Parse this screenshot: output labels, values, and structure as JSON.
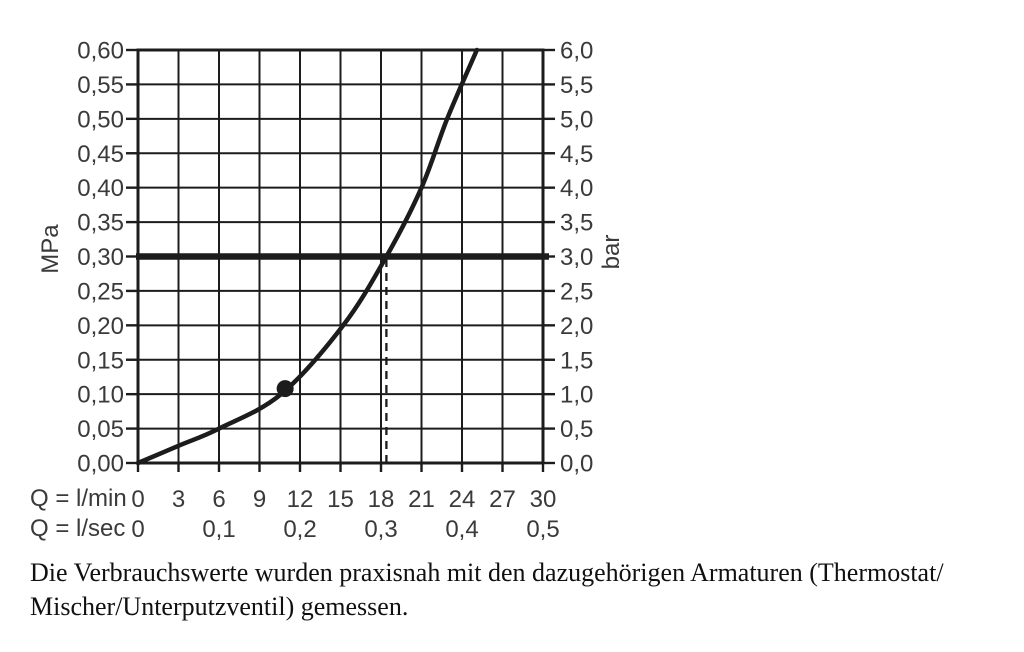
{
  "chart_data": {
    "type": "line",
    "title": "",
    "x_axis": {
      "label": "Q = l/min",
      "tick_values": [
        0,
        3,
        6,
        9,
        12,
        15,
        18,
        21,
        24,
        27,
        30
      ],
      "tick_labels": [
        "0",
        "3",
        "6",
        "9",
        "12",
        "15",
        "18",
        "21",
        "24",
        "27",
        "30"
      ],
      "range": [
        0,
        30
      ]
    },
    "x_axis_secondary": {
      "label": "Q = l/sec",
      "tick_values": [
        0,
        6,
        12,
        18,
        24,
        30
      ],
      "tick_labels": [
        "0",
        "0,1",
        "0,2",
        "0,3",
        "0,4",
        "0,5"
      ],
      "range": [
        0,
        0.5
      ]
    },
    "y_axis_left": {
      "unit": "MPa",
      "tick_values": [
        0.6,
        0.55,
        0.5,
        0.45,
        0.4,
        0.35,
        0.3,
        0.25,
        0.2,
        0.15,
        0.1,
        0.05,
        0.0
      ],
      "tick_labels": [
        "0,60",
        "0,55",
        "0,50",
        "0,45",
        "0,40",
        "0,35",
        "0,30",
        "0,25",
        "0,20",
        "0,15",
        "0,10",
        "0,05",
        "0,00"
      ],
      "range": [
        0,
        0.6
      ]
    },
    "y_axis_right": {
      "unit": "bar",
      "tick_values": [
        6.0,
        5.5,
        5.0,
        4.5,
        4.0,
        3.5,
        3.0,
        2.5,
        2.0,
        1.5,
        1.0,
        0.5,
        0.0
      ],
      "tick_labels": [
        "6,0",
        "5,5",
        "5,0",
        "4,5",
        "4,0",
        "3,5",
        "3,0",
        "2,5",
        "2,0",
        "1,5",
        "1,0",
        "0,5",
        "0,0"
      ],
      "range": [
        0,
        6.0
      ]
    },
    "grid": true,
    "series": [
      {
        "name": "flow-pressure-curve",
        "points_lmin_mpa": [
          [
            0,
            0
          ],
          [
            3,
            0.025
          ],
          [
            6,
            0.05
          ],
          [
            10.6,
            0.1
          ],
          [
            15.2,
            0.2
          ],
          [
            18.4,
            0.3
          ],
          [
            21.0,
            0.4
          ],
          [
            22.9,
            0.5
          ],
          [
            25.1,
            0.6
          ]
        ]
      }
    ],
    "marker_point": {
      "q_lmin": 10.9,
      "p_mpa": 0.108
    },
    "reference_line": {
      "p_mpa": 0.3,
      "style": "thick-solid"
    },
    "guide_line": {
      "q_lmin": 18.4,
      "to_p_mpa": 0.3,
      "style": "dashed"
    },
    "colors": {
      "ink": "#1c1c1c",
      "text": "#3a3a3a"
    }
  },
  "caption": {
    "line1": "Die Verbrauchswerte wurden praxisnah mit den dazugehörigen Armaturen (Thermostat/",
    "line2": "Mischer/Unterputzventil) gemessen."
  }
}
